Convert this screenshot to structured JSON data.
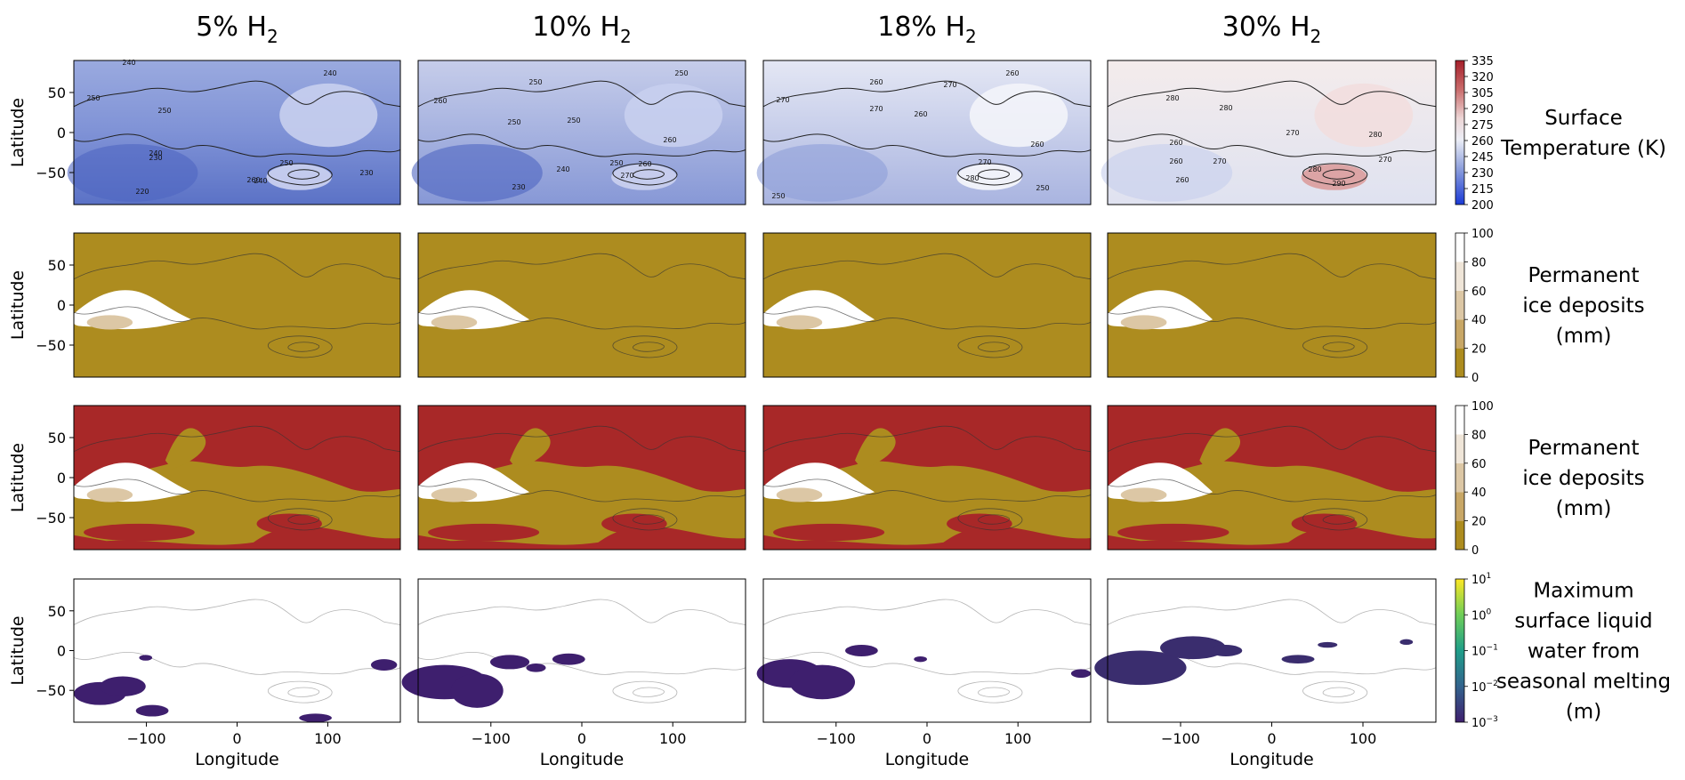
{
  "chart_data": {
    "type": "heatmap",
    "columns": [
      {
        "prefix": "5% H",
        "sub": "2"
      },
      {
        "prefix": "10% H",
        "sub": "2"
      },
      {
        "prefix": "18% H",
        "sub": "2"
      },
      {
        "prefix": "30% H",
        "sub": "2"
      }
    ],
    "rows": [
      {
        "key": "temp",
        "label_lines": [
          "Surface",
          "Temperature (K)"
        ],
        "ylabel": "Latitude",
        "colorbar": {
          "ticks": [
            "335",
            "320",
            "305",
            "290",
            "275",
            "260",
            "245",
            "230",
            "215",
            "200"
          ],
          "range": [
            200,
            335
          ],
          "colors": [
            "#1a3ad6",
            "#4e6bd1",
            "#8ea0dc",
            "#c4cbec",
            "#f1f1f6",
            "#ecd5d5",
            "#dfa7a7",
            "#c96b6b",
            "#b43a3a",
            "#a51f2a"
          ]
        },
        "contours": [
          [
            [
              "240",
              145,
              73
            ],
            [
              "250",
              105,
              113
            ],
            [
              "250",
              185,
              127
            ],
            [
              "230",
              175,
              180
            ],
            [
              "240",
              175,
              175
            ],
            [
              "240",
              293,
              206
            ],
            [
              "250",
              322,
              186
            ],
            [
              "260",
              285,
              205
            ],
            [
              "220",
              160,
              218
            ],
            [
              "230",
              412,
              197
            ],
            [
              "240",
              371,
              85
            ]
          ],
          [
            [
              "250",
              602,
              95
            ],
            [
              "260",
              495,
              116
            ],
            [
              "250",
              578,
              140
            ],
            [
              "250",
              645,
              138
            ],
            [
              "240",
              633,
              193
            ],
            [
              "250",
              693,
              186
            ],
            [
              "260",
              725,
              187
            ],
            [
              "270",
              705,
              200
            ],
            [
              "230",
              583,
              213
            ],
            [
              "260",
              753,
              160
            ],
            [
              "250",
              766,
              85
            ]
          ],
          [
            [
              "260",
              985,
              95
            ],
            [
              "270",
              1068,
              98
            ],
            [
              "270",
              880,
              115
            ],
            [
              "270",
              985,
              125
            ],
            [
              "260",
              1035,
              131
            ],
            [
              "270",
              1107,
              185
            ],
            [
              "280",
              1093,
              203
            ],
            [
              "260",
              1166,
              165
            ],
            [
              "250",
              1172,
              214
            ],
            [
              "250",
              875,
              223
            ],
            [
              "260",
              1138,
              85
            ]
          ],
          [
            [
              "280",
              1318,
              113
            ],
            [
              "280",
              1378,
              124
            ],
            [
              "270",
              1453,
              152
            ],
            [
              "260",
              1322,
              163
            ],
            [
              "260",
              1322,
              184
            ],
            [
              "260",
              1329,
              205
            ],
            [
              "270",
              1371,
              184
            ],
            [
              "280",
              1546,
              154
            ],
            [
              "290",
              1505,
              209
            ],
            [
              "270",
              1557,
              182
            ],
            [
              "280",
              1478,
              193
            ]
          ]
        ]
      },
      {
        "key": "ice",
        "label_lines": [
          "Permanent",
          "ice deposits",
          "(mm)"
        ],
        "ylabel": "Latitude",
        "colorbar": {
          "ticks": [
            "100",
            "80",
            "60",
            "40",
            "20",
            "0"
          ],
          "range": [
            0,
            100
          ],
          "colors": [
            "#ad8c1f",
            "#c8a766",
            "#dcc7a5",
            "#efe5d8",
            "#ffffff"
          ]
        }
      },
      {
        "key": "ice2",
        "label_lines": [
          "Permanent",
          "ice deposits",
          "(mm)"
        ],
        "ylabel": "Latitude",
        "colorbar": {
          "ticks": [
            "100",
            "80",
            "60",
            "40",
            "20",
            "0"
          ],
          "range": [
            0,
            100
          ],
          "colors": [
            "#ad8c1f",
            "#c8a766",
            "#dcc7a5",
            "#efe5d8",
            "#ffffff"
          ]
        }
      },
      {
        "key": "water",
        "label_lines": [
          "Maximum",
          "surface liquid",
          "water from",
          "seasonal melting",
          "(m)"
        ],
        "ylabel": "Latitude",
        "colorbar": {
          "ticks": [
            [
              "10",
              "1"
            ],
            [
              "10",
              "0"
            ],
            [
              "10",
              "−1"
            ],
            [
              "10",
              "−2"
            ],
            [
              "10",
              "−3"
            ]
          ],
          "range": [
            0.001,
            10
          ],
          "colors": [
            "#3e1f6e",
            "#33638d",
            "#1f9e89",
            "#6ece58",
            "#fde725"
          ]
        }
      }
    ],
    "xaxis": {
      "label": "Longitude",
      "ticks": [
        "−100",
        "0",
        "100"
      ],
      "range": [
        -180,
        180
      ]
    },
    "yaxis": {
      "ticks": [
        "50",
        "0",
        "−50"
      ],
      "range": [
        -90,
        90
      ]
    }
  }
}
